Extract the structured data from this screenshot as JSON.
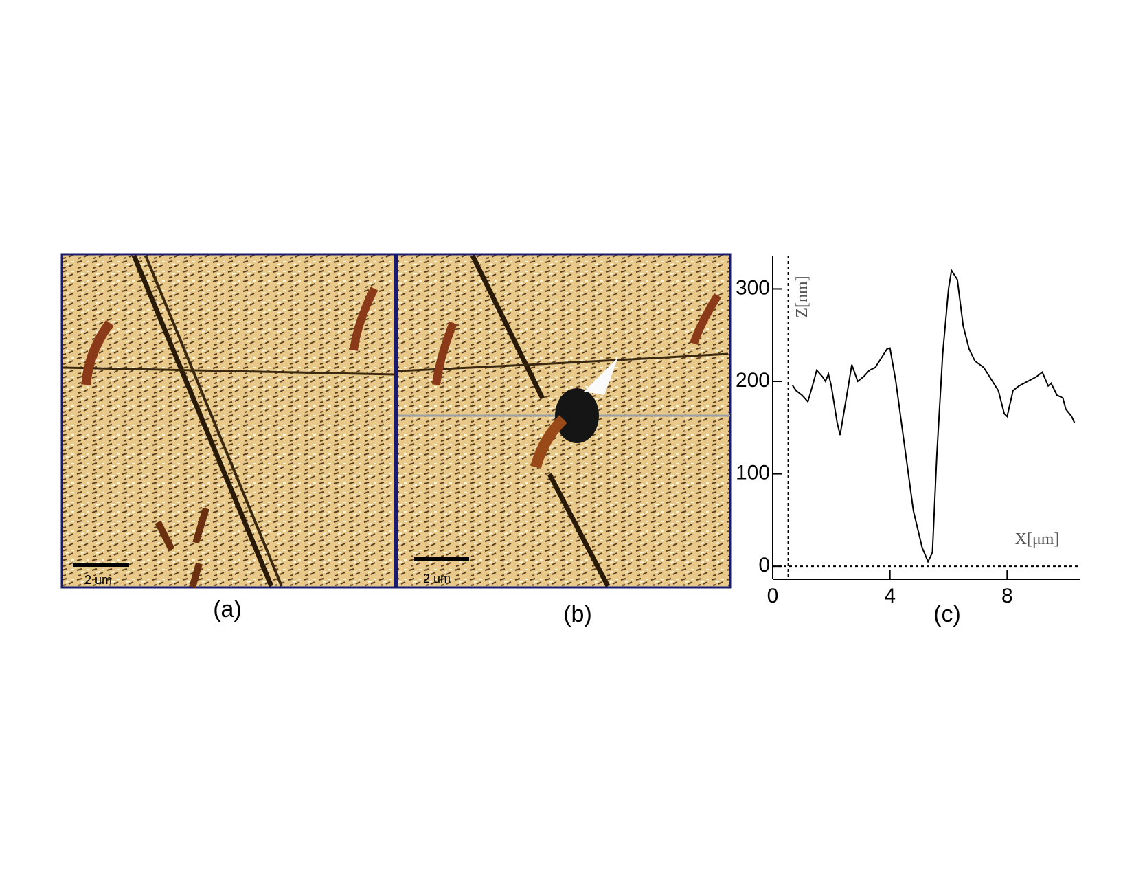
{
  "panels": [
    {
      "label": "(a)",
      "scale_bar": "2 um"
    },
    {
      "label": "(b)",
      "scale_bar": "2 um"
    }
  ],
  "chart_data": {
    "type": "line",
    "label": "(c)",
    "ylabel": "Z[nm]",
    "xlabel": "X[μm]",
    "x": [
      0.67,
      0.8,
      1.0,
      1.2,
      1.4,
      1.5,
      1.7,
      1.8,
      1.9,
      2.0,
      2.2,
      2.3,
      2.5,
      2.7,
      2.9,
      3.1,
      3.3,
      3.5,
      3.7,
      3.9,
      4.0,
      4.2,
      4.5,
      4.8,
      5.1,
      5.3,
      5.45,
      5.6,
      5.8,
      6.0,
      6.1,
      6.3,
      6.5,
      6.7,
      6.9,
      7.2,
      7.5,
      7.7,
      7.9,
      8.0,
      8.2,
      8.4,
      8.7,
      9.0,
      9.2,
      9.4,
      9.5,
      9.7,
      9.9,
      10.0,
      10.2,
      10.3
    ],
    "values": [
      196,
      190,
      185,
      178,
      200,
      212,
      205,
      200,
      208,
      195,
      155,
      142,
      180,
      218,
      200,
      205,
      212,
      215,
      225,
      235,
      236,
      200,
      130,
      60,
      20,
      5,
      15,
      120,
      230,
      300,
      320,
      310,
      260,
      235,
      222,
      215,
      200,
      190,
      165,
      162,
      190,
      195,
      200,
      205,
      210,
      195,
      198,
      185,
      182,
      170,
      162,
      155
    ],
    "color": "#000000",
    "xlim": [
      0,
      10.5
    ],
    "ylim": [
      -14,
      336
    ],
    "xticks": [
      0,
      4,
      8
    ],
    "yticks": [
      0,
      100,
      200,
      300
    ]
  }
}
